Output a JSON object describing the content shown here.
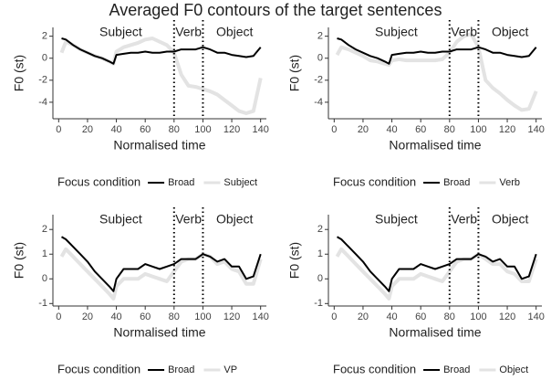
{
  "title": "Averaged F0 contours of the target sentences",
  "chart_data": [
    {
      "type": "line",
      "xlabel": "Normalised time",
      "ylabel": "F0 (st)",
      "legend_title": "Focus condition",
      "annotations": [
        "Subject",
        "Verb",
        "Object"
      ],
      "vlines": [
        80,
        100
      ],
      "xlim": [
        -4,
        144
      ],
      "xticks": [
        0,
        20,
        40,
        60,
        80,
        100,
        120,
        140
      ],
      "ylim": [
        -5.5,
        2.8
      ],
      "yticks": [
        -4,
        -2,
        0,
        2
      ],
      "x": [
        2,
        5,
        10,
        15,
        20,
        25,
        30,
        35,
        38,
        40,
        45,
        50,
        55,
        60,
        65,
        70,
        75,
        80,
        85,
        90,
        95,
        100,
        105,
        110,
        115,
        120,
        125,
        130,
        135,
        140
      ],
      "series": [
        {
          "name": "Broad",
          "color": "#000000",
          "values": [
            1.8,
            1.7,
            1.2,
            0.8,
            0.5,
            0.2,
            0,
            -0.3,
            -0.5,
            0.3,
            0.4,
            0.5,
            0.5,
            0.6,
            0.5,
            0.5,
            0.6,
            0.6,
            0.8,
            0.8,
            0.8,
            1.0,
            0.8,
            0.5,
            0.5,
            0.3,
            0.2,
            0.1,
            0.2,
            1.0
          ]
        },
        {
          "name": "Subject",
          "color": "#e3e3e3",
          "values": [
            0.5,
            1.5,
            1.2,
            0.8,
            0.5,
            0.2,
            0,
            -0.3,
            -0.5,
            0.6,
            1.0,
            1.2,
            1.4,
            1.7,
            1.8,
            1.5,
            1.2,
            0.5,
            -1.5,
            -2.5,
            -2.6,
            -2.8,
            -3.0,
            -3.3,
            -3.8,
            -4.3,
            -4.8,
            -5.0,
            -4.8,
            -1.8
          ]
        }
      ]
    },
    {
      "type": "line",
      "xlabel": "Normalised time",
      "ylabel": "F0 (st)",
      "legend_title": "Focus condition",
      "annotations": [
        "Subject",
        "Verb",
        "Object"
      ],
      "vlines": [
        80,
        100
      ],
      "xlim": [
        -4,
        144
      ],
      "xticks": [
        0,
        20,
        40,
        60,
        80,
        100,
        120,
        140
      ],
      "ylim": [
        -5.5,
        2.8
      ],
      "yticks": [
        -4,
        -2,
        0,
        2
      ],
      "x": [
        2,
        5,
        10,
        15,
        20,
        25,
        30,
        35,
        38,
        40,
        45,
        50,
        55,
        60,
        65,
        70,
        75,
        80,
        85,
        90,
        95,
        100,
        105,
        110,
        115,
        120,
        125,
        130,
        135,
        140
      ],
      "series": [
        {
          "name": "Broad",
          "color": "#000000",
          "values": [
            1.8,
            1.7,
            1.2,
            0.8,
            0.5,
            0.2,
            0,
            -0.3,
            -0.5,
            0.3,
            0.4,
            0.5,
            0.5,
            0.6,
            0.5,
            0.5,
            0.6,
            0.6,
            0.8,
            0.8,
            0.8,
            1.0,
            0.8,
            0.5,
            0.5,
            0.3,
            0.2,
            0.1,
            0.2,
            1.0
          ]
        },
        {
          "name": "Verb",
          "color": "#e3e3e3",
          "values": [
            0.3,
            1.0,
            0.8,
            0.5,
            0.2,
            -0.2,
            -0.3,
            -0.5,
            -0.6,
            -0.2,
            -0.1,
            -0.2,
            -0.2,
            -0.2,
            -0.2,
            -0.2,
            -0.1,
            0.5,
            1.5,
            2.0,
            2.2,
            1.0,
            -2.0,
            -2.7,
            -3.2,
            -3.8,
            -4.3,
            -4.7,
            -4.6,
            -3.0
          ]
        }
      ]
    },
    {
      "type": "line",
      "xlabel": "Normalised time",
      "ylabel": "F0 (st)",
      "legend_title": "Focus condition",
      "annotations": [
        "Subject",
        "Verb",
        "Object"
      ],
      "vlines": [
        80,
        100
      ],
      "xlim": [
        -4,
        144
      ],
      "xticks": [
        0,
        20,
        40,
        60,
        80,
        100,
        120,
        140
      ],
      "ylim": [
        -1.1,
        2.6
      ],
      "yticks": [
        -1,
        0,
        1,
        2
      ],
      "x": [
        2,
        5,
        10,
        15,
        20,
        25,
        30,
        35,
        38,
        40,
        45,
        50,
        55,
        60,
        65,
        70,
        75,
        80,
        85,
        90,
        95,
        100,
        105,
        110,
        115,
        120,
        125,
        130,
        135,
        140
      ],
      "series": [
        {
          "name": "Broad",
          "color": "#000000",
          "values": [
            1.7,
            1.6,
            1.3,
            1.0,
            0.7,
            0.3,
            0,
            -0.3,
            -0.5,
            0,
            0.4,
            0.4,
            0.4,
            0.6,
            0.5,
            0.4,
            0.5,
            0.6,
            0.8,
            0.8,
            0.8,
            1.0,
            0.9,
            0.7,
            0.8,
            0.5,
            0.5,
            0.0,
            0.1,
            1.0
          ]
        },
        {
          "name": "VP",
          "color": "#e3e3e3",
          "values": [
            0.9,
            1.2,
            0.9,
            0.6,
            0.3,
            0,
            -0.3,
            -0.6,
            -0.8,
            -0.3,
            0,
            0,
            0,
            0.2,
            0.1,
            0,
            -0.1,
            0.3,
            0.7,
            0.8,
            0.8,
            1.0,
            0.9,
            0.6,
            0.7,
            0.4,
            0.3,
            -0.2,
            -0.2,
            0.8
          ]
        }
      ]
    },
    {
      "type": "line",
      "xlabel": "Normalised time",
      "ylabel": "F0 (st)",
      "legend_title": "Focus condition",
      "annotations": [
        "Subject",
        "Verb",
        "Object"
      ],
      "vlines": [
        80,
        100
      ],
      "xlim": [
        -4,
        144
      ],
      "xticks": [
        0,
        20,
        40,
        60,
        80,
        100,
        120,
        140
      ],
      "ylim": [
        -1.1,
        2.6
      ],
      "yticks": [
        -1,
        0,
        1,
        2
      ],
      "x": [
        2,
        5,
        10,
        15,
        20,
        25,
        30,
        35,
        38,
        40,
        45,
        50,
        55,
        60,
        65,
        70,
        75,
        80,
        85,
        90,
        95,
        100,
        105,
        110,
        115,
        120,
        125,
        130,
        135,
        140
      ],
      "series": [
        {
          "name": "Broad",
          "color": "#000000",
          "values": [
            1.7,
            1.6,
            1.3,
            1.0,
            0.7,
            0.3,
            0,
            -0.3,
            -0.5,
            0,
            0.4,
            0.4,
            0.4,
            0.6,
            0.5,
            0.4,
            0.5,
            0.6,
            0.8,
            0.8,
            0.8,
            1.0,
            0.9,
            0.7,
            0.8,
            0.5,
            0.5,
            0.0,
            0.1,
            1.0
          ]
        },
        {
          "name": "Object",
          "color": "#e3e3e3",
          "values": [
            0.9,
            1.2,
            0.9,
            0.6,
            0.3,
            0,
            -0.3,
            -0.6,
            -0.8,
            -0.3,
            0,
            0,
            0,
            0.2,
            0.1,
            0,
            -0.1,
            0.3,
            0.7,
            0.8,
            0.8,
            1.0,
            0.8,
            0.6,
            0.6,
            0.3,
            0.2,
            -0.1,
            -0.1,
            0.8
          ]
        }
      ]
    }
  ]
}
